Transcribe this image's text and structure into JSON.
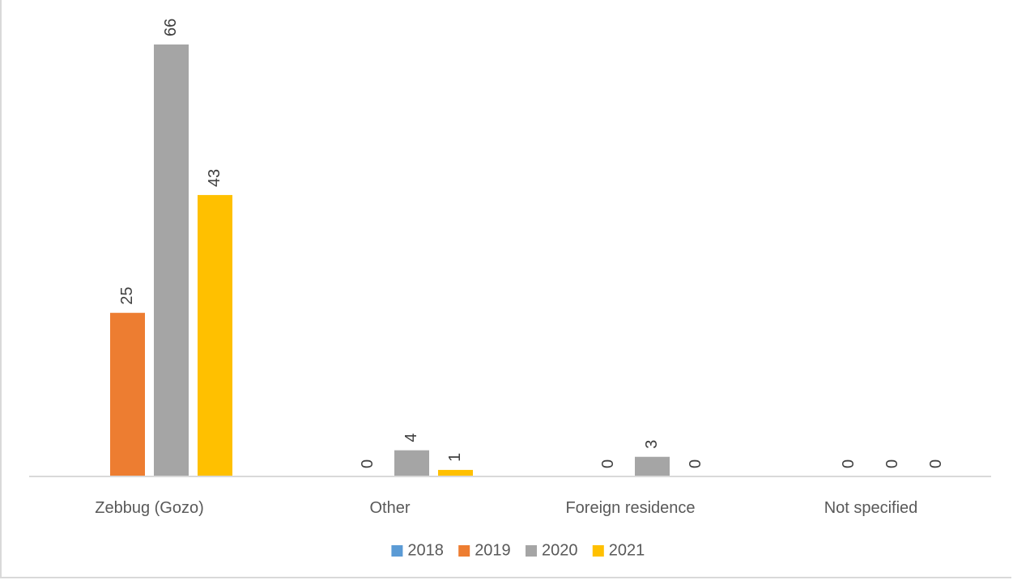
{
  "chart_data": {
    "type": "bar",
    "categories": [
      "Zebbug (Gozo)",
      "Other",
      "Foreign residence",
      "Not specified"
    ],
    "series": [
      {
        "name": "2018",
        "color": "#5b9bd5",
        "values": [
          null,
          null,
          null,
          null
        ]
      },
      {
        "name": "2019",
        "color": "#ed7d31",
        "values": [
          25,
          0,
          0,
          0
        ]
      },
      {
        "name": "2020",
        "color": "#a5a5a5",
        "values": [
          66,
          4,
          3,
          0
        ]
      },
      {
        "name": "2021",
        "color": "#ffc000",
        "values": [
          43,
          1,
          0,
          0
        ]
      }
    ],
    "ylim": [
      0,
      70
    ],
    "grid": false,
    "legend": "bottom",
    "data_labels": true
  }
}
